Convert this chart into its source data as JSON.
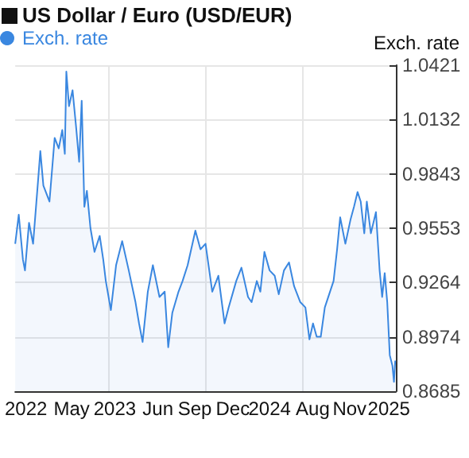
{
  "chart_data": {
    "type": "area",
    "title": "US Dollar / Euro (USD/EUR)",
    "ylabel": "Exch. rate",
    "legend": "top left",
    "grid": true,
    "marker": "none",
    "xlim": [
      2022.315,
      2025.315
    ],
    "xticks": [
      {
        "value": 2022.4,
        "label": "2022"
      },
      {
        "value": 2022.76,
        "label": "May"
      },
      {
        "value": 2023.05,
        "label": null
      },
      {
        "value": 2023.1,
        "label": "2023"
      },
      {
        "value": 2023.44,
        "label": "Jun"
      },
      {
        "value": 2023.73,
        "label": "Sep"
      },
      {
        "value": 2023.81,
        "label": null
      },
      {
        "value": 2024.03,
        "label": "Dec"
      },
      {
        "value": 2024.32,
        "label": "2024"
      },
      {
        "value": 2024.58,
        "label": null
      },
      {
        "value": 2024.66,
        "label": "Aug"
      },
      {
        "value": 2024.95,
        "label": "Nov"
      },
      {
        "value": 2025.26,
        "label": "2025"
      }
    ],
    "ylim": [
      0.8685,
      1.0421
    ],
    "yticks": [
      0.8685,
      0.8974,
      0.9264,
      0.9553,
      0.9843,
      1.0132,
      1.0421
    ],
    "series": [
      {
        "name": "Exch. rate",
        "color": "#3a87e0",
        "x": [
          2022.315,
          2022.343,
          2022.376,
          2022.392,
          2022.424,
          2022.456,
          2022.497,
          2022.513,
          2022.537,
          2022.585,
          2022.626,
          2022.658,
          2022.686,
          2022.706,
          2022.718,
          2022.739,
          2022.767,
          2022.795,
          2022.819,
          2022.839,
          2022.86,
          2022.88,
          2022.908,
          2022.94,
          2022.981,
          2023.009,
          2023.029,
          2023.069,
          2023.11,
          2023.158,
          2023.21,
          2023.263,
          2023.291,
          2023.319,
          2023.36,
          2023.4,
          2023.452,
          2023.493,
          2023.521,
          2023.553,
          2023.602,
          2023.634,
          2023.674,
          2023.735,
          2023.775,
          2023.815,
          2023.868,
          2023.916,
          2023.965,
          2023.997,
          2024.057,
          2024.098,
          2024.15,
          2024.178,
          2024.219,
          2024.247,
          2024.279,
          2024.32,
          2024.36,
          2024.392,
          2024.433,
          2024.473,
          2024.513,
          2024.562,
          2024.602,
          2024.634,
          2024.662,
          2024.691,
          2024.723,
          2024.755,
          2024.796,
          2024.824,
          2024.852,
          2024.876,
          2024.917,
          2024.957,
          2024.985,
          2025.013,
          2025.038,
          2025.066,
          2025.086,
          2025.118,
          2025.158,
          2025.187,
          2025.207,
          2025.227,
          2025.247,
          2025.267,
          2025.288,
          2025.3,
          2025.31
        ],
        "values": [
          0.947,
          0.9625,
          0.9385,
          0.9328,
          0.9582,
          0.947,
          0.9822,
          0.9964,
          0.978,
          0.9695,
          1.0034,
          0.9978,
          1.0076,
          0.9949,
          1.0387,
          1.0203,
          1.0288,
          1.0091,
          0.9907,
          1.0232,
          0.9667,
          0.9752,
          0.9554,
          0.9427,
          0.9512,
          0.9385,
          0.9272,
          0.9117,
          0.9356,
          0.9484,
          0.9328,
          0.9159,
          0.9046,
          0.8947,
          0.9215,
          0.9356,
          0.9187,
          0.9215,
          0.8919,
          0.9102,
          0.9215,
          0.9272,
          0.9356,
          0.954,
          0.9441,
          0.947,
          0.9215,
          0.93,
          0.9046,
          0.9131,
          0.9272,
          0.9343,
          0.9187,
          0.9159,
          0.9272,
          0.9215,
          0.9427,
          0.9328,
          0.93,
          0.9201,
          0.9328,
          0.9371,
          0.9244,
          0.9159,
          0.9131,
          0.8961,
          0.9046,
          0.8975,
          0.8975,
          0.9131,
          0.9215,
          0.9272,
          0.9441,
          0.9611,
          0.947,
          0.9597,
          0.9667,
          0.9746,
          0.9695,
          0.9526,
          0.9695,
          0.9526,
          0.9639,
          0.9328,
          0.9187,
          0.9314,
          0.9159,
          0.8877,
          0.882,
          0.8735,
          0.8848
        ]
      }
    ]
  }
}
